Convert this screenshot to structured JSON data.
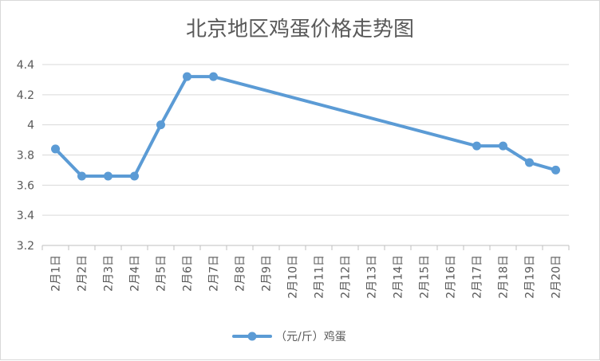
{
  "chart_data": {
    "type": "line",
    "title": "北京地区鸡蛋价格走势图",
    "xlabel": "",
    "ylabel": "",
    "categories": [
      "2月1日",
      "2月2日",
      "2月3日",
      "2月4日",
      "2月5日",
      "2月6日",
      "2月7日",
      "2月8日",
      "2月9日",
      "2月10日",
      "2月11日",
      "2月12日",
      "2月13日",
      "2月14日",
      "2月15日",
      "2月16日",
      "2月17日",
      "2月18日",
      "2月19日",
      "2月20日"
    ],
    "ylim": [
      3.2,
      4.4
    ],
    "yticks": [
      "3.2",
      "3.4",
      "3.6",
      "3.8",
      "4",
      "4.2",
      "4.4"
    ],
    "grid": true,
    "legend_position": "bottom",
    "series": [
      {
        "name": "（元/斤）鸡蛋",
        "color": "#5b9bd5",
        "points": [
          {
            "x": "2月1日",
            "y": 3.84
          },
          {
            "x": "2月2日",
            "y": 3.66
          },
          {
            "x": "2月3日",
            "y": 3.66
          },
          {
            "x": "2月4日",
            "y": 3.66
          },
          {
            "x": "2月5日",
            "y": 4.0
          },
          {
            "x": "2月6日",
            "y": 4.32
          },
          {
            "x": "2月7日",
            "y": 4.32
          },
          {
            "x": "2月17日",
            "y": 3.86
          },
          {
            "x": "2月18日",
            "y": 3.86
          },
          {
            "x": "2月19日",
            "y": 3.75
          },
          {
            "x": "2月20日",
            "y": 3.7
          }
        ]
      }
    ]
  }
}
